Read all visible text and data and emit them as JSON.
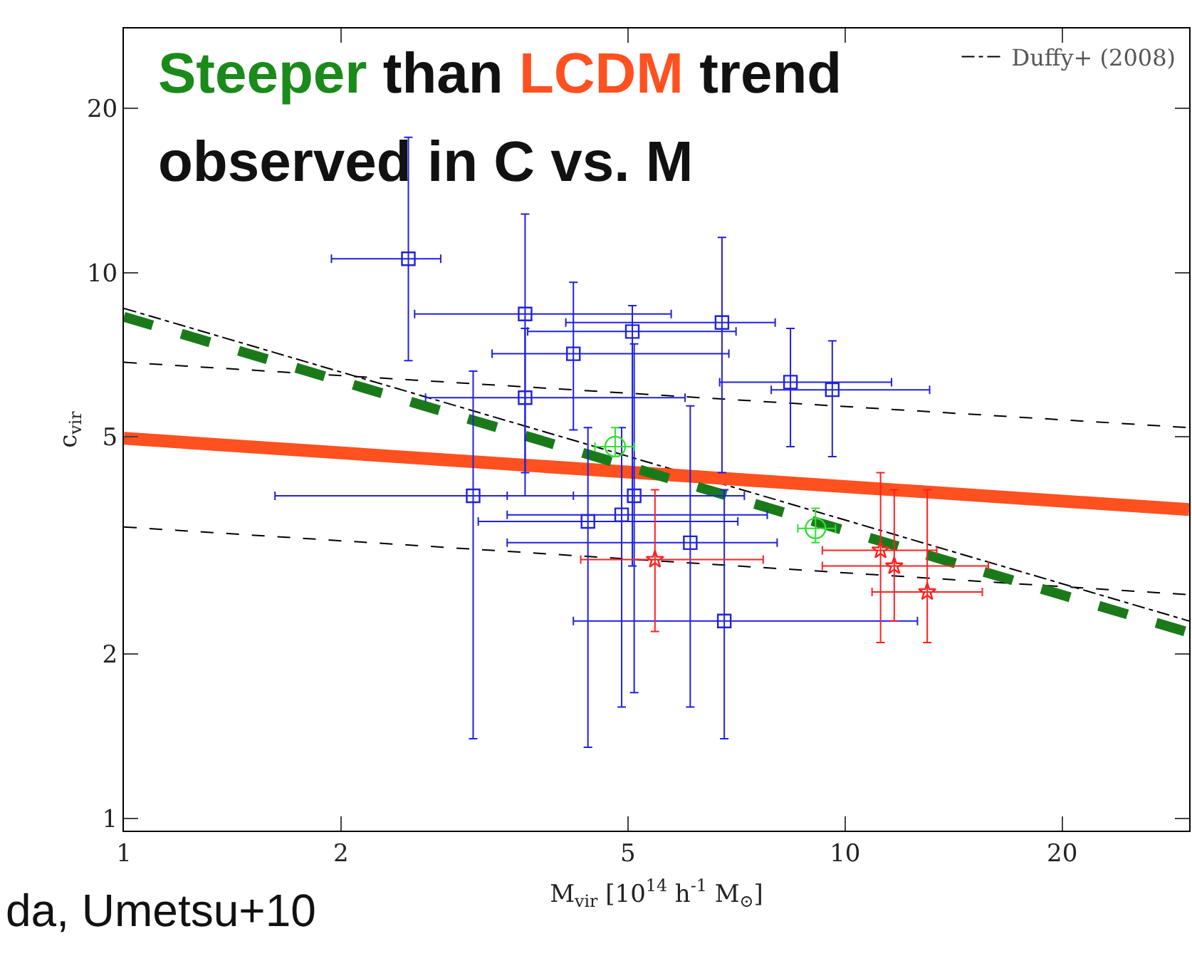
{
  "chart_data": {
    "type": "scatter",
    "xlabel": "M$_{vir}$ [10$^{14}$ h$^{-1}$ M$_{⊙}$]",
    "ylabel": "c$_{vir}$",
    "log": "xy",
    "grid": false,
    "legend": "top right",
    "xlim": [
      1,
      30
    ],
    "ylim": [
      0.95,
      28
    ],
    "xticks": [
      1,
      2,
      5,
      10,
      20
    ],
    "yticks": [
      1,
      2,
      5,
      10,
      20
    ],
    "annotations": [
      "Steeper",
      "than",
      "LCDM",
      "trend",
      "observed in C vs. M",
      "da, Umetsu+10"
    ],
    "series": [
      {
        "type": "line",
        "x": [
          1,
          30
        ],
        "values": [
          6.85,
          5.2
        ],
        "color": "#000000",
        "line_style": "dashed"
      },
      {
        "type": "line",
        "x": [
          1,
          30
        ],
        "values": [
          3.42,
          2.57
        ],
        "color": "#000000",
        "line_style": "dashed"
      },
      {
        "type": "line",
        "name": "Duffy+ (2008)",
        "x": [
          1,
          30
        ],
        "values": [
          8.6,
          2.3
        ],
        "color": "#000000",
        "line_style": "dashed"
      },
      {
        "type": "line",
        "x": [
          1,
          30
        ],
        "values": [
          4.97,
          3.68
        ],
        "color": "#ff5020",
        "line_style": "solid"
      },
      {
        "type": "line",
        "x": [
          1,
          30
        ],
        "values": [
          8.3,
          2.19
        ],
        "color": "#1a7a1a",
        "line_style": "dashed"
      },
      {
        "type": "scatter",
        "marker": "square",
        "color": "#2020e0",
        "x": [
          2.48,
          3.6,
          4.2,
          3.6,
          5.07,
          6.75,
          8.4,
          9.6,
          3.05,
          4.4,
          4.9,
          5.1,
          6.1,
          6.8
        ],
        "values": [
          10.6,
          8.4,
          7.1,
          5.9,
          7.8,
          8.1,
          6.3,
          6.1,
          3.9,
          3.5,
          3.6,
          3.9,
          3.2,
          2.3
        ],
        "xerrors": [
          [
            1.94,
            2.75
          ],
          [
            2.53,
            5.74
          ],
          [
            3.24,
            6.9
          ],
          [
            2.62,
            6.0
          ],
          [
            3.63,
            7.06
          ],
          [
            4.1,
            8.0
          ],
          [
            6.7,
            11.6
          ],
          [
            7.9,
            13.1
          ],
          [
            1.62,
            4.2
          ],
          [
            3.1,
            7.1
          ],
          [
            3.4,
            7.8
          ],
          [
            3.4,
            7.25
          ],
          [
            3.4,
            8.05
          ],
          [
            4.2,
            12.6
          ]
        ],
        "errors": [
          [
            6.9,
            17.7
          ],
          [
            3.9,
            12.8
          ],
          [
            5.15,
            9.6
          ],
          [
            4.3,
            7.9
          ],
          [
            2.9,
            8.7
          ],
          [
            4.3,
            11.6
          ],
          [
            4.8,
            7.9
          ],
          [
            4.6,
            7.5
          ],
          [
            1.4,
            6.6
          ],
          [
            1.35,
            5.2
          ],
          [
            1.6,
            5.2
          ],
          [
            1.7,
            7.4
          ],
          [
            1.6,
            5.7
          ],
          [
            1.4,
            4.0
          ]
        ]
      },
      {
        "type": "scatter",
        "marker": "circle",
        "color": "#30e030",
        "x": [
          4.8,
          9.1
        ],
        "values": [
          4.8,
          3.4
        ],
        "xerrors": [
          [
            4.5,
            5.1
          ],
          [
            8.6,
            9.7
          ]
        ],
        "errors": [
          [
            4.6,
            5.2
          ],
          [
            3.2,
            3.7
          ]
        ]
      },
      {
        "type": "scatter",
        "marker": "star",
        "color": "#ff2020",
        "x": [
          5.45,
          11.2,
          11.7,
          13.0
        ],
        "values": [
          2.98,
          3.1,
          2.9,
          2.6
        ],
        "xerrors": [
          [
            4.3,
            7.7
          ],
          [
            9.3,
            13.4
          ],
          [
            9.3,
            15.8
          ],
          [
            10.9,
            15.5
          ]
        ],
        "errors": [
          [
            2.2,
            4.0
          ],
          [
            2.1,
            4.3
          ],
          [
            2.3,
            4.0
          ],
          [
            2.1,
            4.0
          ]
        ]
      }
    ]
  }
}
